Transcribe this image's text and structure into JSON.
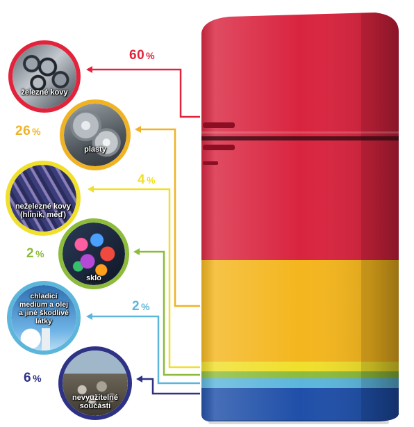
{
  "colors": {
    "red": "#e2233b",
    "orange": "#f0b323",
    "yellow": "#f0df2b",
    "green": "#8dbb3b",
    "light_blue": "#5cb6dc",
    "navy": "#2e3284",
    "fridge_red": "#d9243f",
    "fridge_yellow": "#f4b61e",
    "fridge_blue": "#1f4fa8"
  },
  "items": [
    {
      "label_lines": [
        "železné kovy"
      ],
      "percent": "60",
      "sign": "%",
      "share": 60,
      "color": "#e2233b",
      "icon": "steel-pipes-photo"
    },
    {
      "label_lines": [
        "plasty"
      ],
      "percent": "26",
      "sign": "%",
      "share": 26,
      "color": "#f0b323",
      "icon": "hubcaps-photo"
    },
    {
      "label_lines": [
        "neželezné kovy",
        "(hliník, měď)"
      ],
      "percent": "4",
      "sign": "%",
      "share": 4,
      "color": "#f0df2b",
      "icon": "metal-rods-photo"
    },
    {
      "label_lines": [
        "sklo"
      ],
      "percent": "2",
      "sign": "%",
      "share": 2,
      "color": "#8dbb3b",
      "icon": "glass-marbles-photo"
    },
    {
      "label_lines": [
        "chladicí",
        "medium a olej",
        "a jiné škodlivé",
        "látky"
      ],
      "percent": "2",
      "sign": "%",
      "share": 2,
      "color": "#5cb6dc",
      "icon": "smokestack-photo"
    },
    {
      "label_lines": [
        "nevyužitelné",
        "součásti"
      ],
      "percent": "6",
      "sign": "%",
      "share": 6,
      "color": "#2e3284",
      "icon": "waste-pile-photo"
    }
  ]
}
